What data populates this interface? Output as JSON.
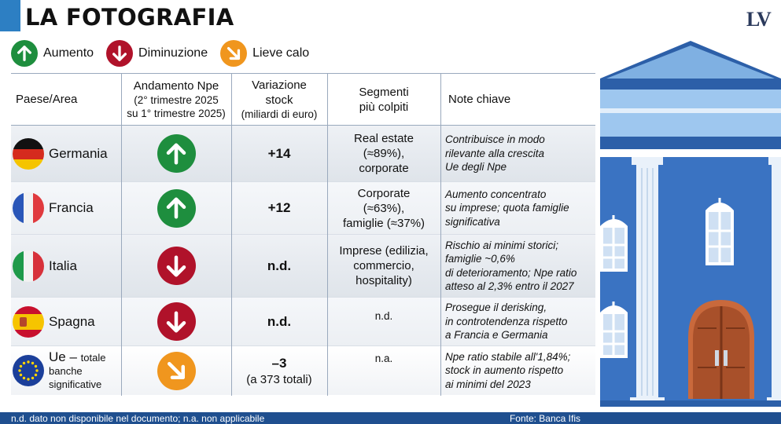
{
  "header": {
    "title": "LA FOTOGRAFIA",
    "logo": "LV"
  },
  "legend": [
    {
      "icon": "arrow-up-icon",
      "label": "Aumento"
    },
    {
      "icon": "arrow-down-icon",
      "label": "Diminuzione"
    },
    {
      "icon": "arrow-down-right-icon",
      "label": "Lieve calo"
    }
  ],
  "colors": {
    "increase": "#1e8e3e",
    "decrease": "#b0122a",
    "slight_decrease": "#f0961e",
    "accent": "#2d7fc3",
    "footer": "#1f4f8f"
  },
  "table": {
    "columns": {
      "country": "Paese/Area",
      "trend_title": "Andamento Npe",
      "trend_sub1": "(2° trimestre 2025",
      "trend_sub2": "su 1° trimestre 2025)",
      "var_title1": "Variazione",
      "var_title2": "stock",
      "var_sub": "(miliardi di euro)",
      "seg1": "Segmenti",
      "seg2": "più colpiti",
      "notes": "Note chiave"
    },
    "rows": [
      {
        "country": "Germania",
        "flag": "germany-flag-icon",
        "trend": "up",
        "variation": "+14",
        "segments": [
          "Real estate",
          "(≈89%),",
          "corporate"
        ],
        "notes": [
          "Contribuisce in modo",
          "rilevante alla crescita",
          "Ue degli Npe"
        ]
      },
      {
        "country": "Francia",
        "flag": "france-flag-icon",
        "trend": "up",
        "variation": "+12",
        "segments": [
          "Corporate",
          "(≈63%),",
          "famiglie (≈37%)"
        ],
        "notes": [
          "Aumento concentrato",
          "su imprese; quota famiglie",
          "significativa"
        ]
      },
      {
        "country": "Italia",
        "flag": "italy-flag-icon",
        "trend": "down",
        "variation": "n.d.",
        "segments": [
          "Imprese (edilizia,",
          "commercio,",
          "hospitality)"
        ],
        "notes": [
          "Rischio ai minimi storici;",
          "famiglie ~0,6%",
          "di deterioramento;  Npe ratio",
          "atteso al 2,3% entro il 2027"
        ]
      },
      {
        "country": "Spagna",
        "flag": "spain-flag-icon",
        "trend": "down",
        "variation": "n.d.",
        "segments": [
          "n.d."
        ],
        "notes": [
          "Prosegue il derisking,",
          "in controtendenza rispetto",
          "a Francia e Germania"
        ]
      },
      {
        "country_main": "Ue",
        "country_dash": " – ",
        "country_small": "totale",
        "country_rest1": "banche",
        "country_rest2": "significative",
        "flag": "eu-flag-icon",
        "trend": "slight",
        "variation": "–3",
        "variation_sub": "(a 373 totali)",
        "segments": [
          "n.a."
        ],
        "notes": [
          "Npe ratio stabile all'1,84%;",
          "stock in aumento rispetto",
          "ai minimi del 2023"
        ]
      }
    ]
  },
  "footer": {
    "legend_note": "n.d. dato non disponibile nel documento; n.a. non applicabile",
    "source": "Fonte: Banca Ifis"
  }
}
